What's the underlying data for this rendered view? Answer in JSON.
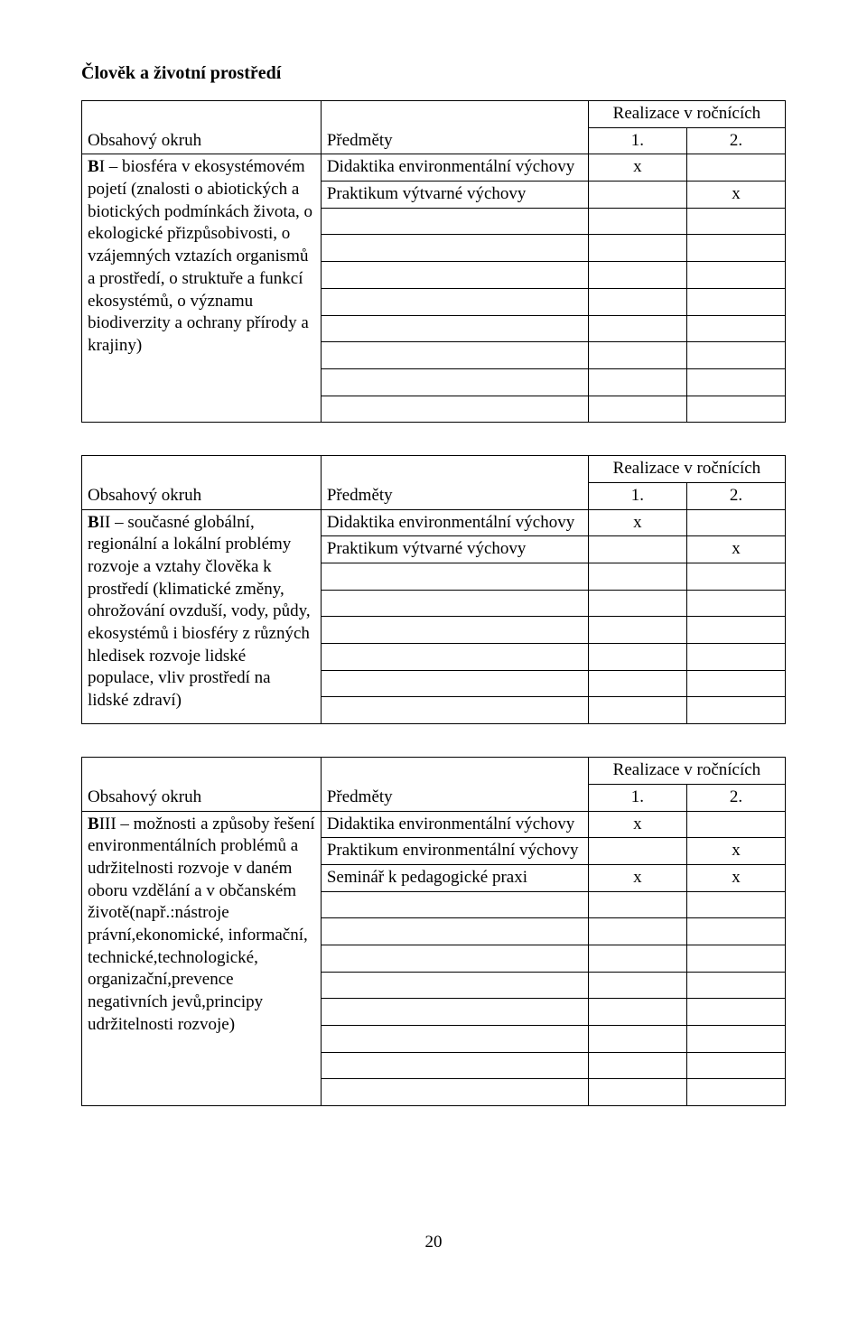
{
  "page_number": "20",
  "section_title": "Člověk a životní prostředí",
  "labels": {
    "obsahovy_okruh": "Obsahový okruh",
    "predmety": "Předměty",
    "realizace": "Realizace v ročnících",
    "r1": "1.",
    "r2": "2."
  },
  "tables": [
    {
      "okruh_bold": "B",
      "okruh_rest": "I – biosféra v ekosystémovém pojetí (znalosti o abiotických a biotických podmínkách života, o ekologické přizpůsobivosti, o vzájemných vztazích organismů a prostředí, o struktuře a funkcí ekosystémů, o významu biodiverzity a ochrany přírody a krajiny)",
      "rows": [
        {
          "predmet": "Didaktika environmentální výchovy",
          "r1": "x",
          "r2": ""
        },
        {
          "predmet": "Praktikum výtvarné výchovy",
          "r1": "",
          "r2": "x"
        }
      ],
      "filler": 8
    },
    {
      "okruh_bold": "B",
      "okruh_rest": "II – současné globální, regionální a lokální problémy rozvoje a vztahy člověka k prostředí (klimatické změny, ohrožování ovzduší, vody, půdy, ekosystémů i biosféry z různých hledisek rozvoje lidské populace, vliv prostředí na lidské zdraví)",
      "rows": [
        {
          "predmet": "Didaktika environmentální výchovy",
          "r1": "x",
          "r2": ""
        },
        {
          "predmet": "Praktikum výtvarné výchovy",
          "r1": "",
          "r2": "x"
        }
      ],
      "filler": 6
    },
    {
      "okruh_bold": "B",
      "okruh_rest": "III – možnosti a způsoby řešení environmentálních problémů a udržitelnosti rozvoje v daném oboru vzdělání a v občanském životě(např.:nástroje právní,ekonomické, informační, technické,technologické, organizační,prevence negativních jevů,principy udržitelnosti rozvoje)",
      "rows": [
        {
          "predmet": "Didaktika environmentální výchovy",
          "r1": "x",
          "r2": ""
        },
        {
          "predmet": "Praktikum environmentální výchovy",
          "r1": "",
          "r2": "x"
        },
        {
          "predmet": "Seminář k pedagogické praxi",
          "r1": "x",
          "r2": "x"
        }
      ],
      "filler": 8
    }
  ]
}
